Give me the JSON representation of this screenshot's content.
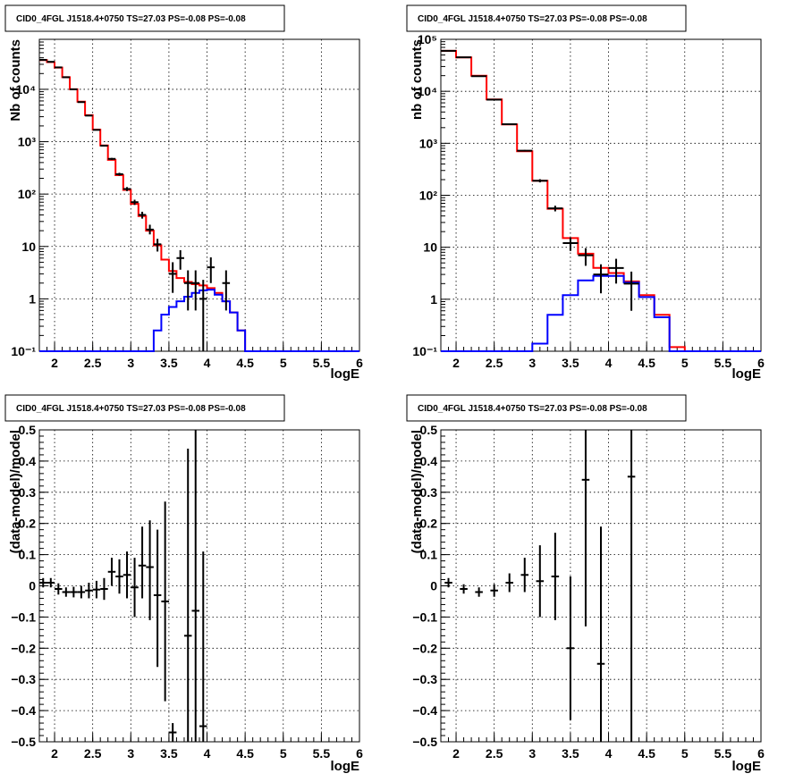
{
  "chart_data": [
    {
      "type": "line",
      "id": "counts_left",
      "title": "CID0_4FGL J1518.4+0750 TS=27.03 PS=-0.08 PS=-0.08",
      "xlabel": "logE",
      "ylabel": "Nb of counts",
      "xlim": [
        1.8,
        6.0
      ],
      "ylim": [
        0.1,
        90000
      ],
      "yscale": "log",
      "xticks": [
        "2",
        "2.5",
        "3",
        "3.5",
        "4",
        "4.5",
        "5",
        "5.5",
        "6"
      ],
      "yticks": [
        "10⁻¹",
        "1",
        "10",
        "10²",
        "10³",
        "10⁴"
      ],
      "grid": true,
      "bin_edges": [
        1.8,
        1.9,
        2.0,
        2.1,
        2.2,
        2.3,
        2.4,
        2.5,
        2.6,
        2.7,
        2.8,
        2.9,
        3.0,
        3.1,
        3.2,
        3.3,
        3.4,
        3.5,
        3.6,
        3.7,
        3.8,
        3.9,
        4.0,
        4.1,
        4.2,
        4.3,
        4.4,
        4.5,
        4.6,
        4.7,
        4.8,
        4.9,
        5.0,
        5.1,
        5.2,
        5.3,
        5.4,
        5.5,
        5.6,
        5.7,
        5.8,
        5.9,
        6.0
      ],
      "series": [
        {
          "color": "#ff0000",
          "values": [
            36000,
            33000,
            26000,
            17000,
            10000,
            5800,
            3200,
            1700,
            850,
            450,
            230,
            120,
            65,
            38,
            20,
            10.5,
            5.6,
            3.4,
            2.5,
            2.1,
            1.9,
            1.8,
            1.6,
            1.3,
            0.9,
            0.55,
            0.25,
            0.1,
            0.1,
            0.1,
            0.1,
            0.1,
            0.1,
            0.1,
            0.1,
            0.1,
            0.1,
            0.1,
            0.1,
            0.1,
            0.1,
            0.1
          ]
        },
        {
          "color": "#0000ff",
          "values": [
            0.1,
            0.1,
            0.1,
            0.1,
            0.1,
            0.1,
            0.1,
            0.1,
            0.1,
            0.1,
            0.1,
            0.1,
            0.1,
            0.1,
            0.1,
            0.25,
            0.5,
            0.7,
            0.9,
            1.1,
            1.3,
            1.45,
            1.5,
            1.2,
            0.9,
            0.55,
            0.25,
            0.1,
            0.1,
            0.1,
            0.1,
            0.1,
            0.1,
            0.1,
            0.1,
            0.1,
            0.1,
            0.1,
            0.1,
            0.1,
            0.1,
            0.1
          ]
        }
      ],
      "points": [
        {
          "x": 1.85,
          "y": 36500,
          "ylo": 36000,
          "yhi": 37000
        },
        {
          "x": 1.95,
          "y": 33500,
          "ylo": 33000,
          "yhi": 34000
        },
        {
          "x": 2.05,
          "y": 26200,
          "ylo": 25800,
          "yhi": 26600
        },
        {
          "x": 2.15,
          "y": 17000,
          "ylo": 16800,
          "yhi": 17200
        },
        {
          "x": 2.25,
          "y": 10000,
          "ylo": 9900,
          "yhi": 10100
        },
        {
          "x": 2.35,
          "y": 5700,
          "ylo": 5620,
          "yhi": 5780
        },
        {
          "x": 2.45,
          "y": 3150,
          "ylo": 3100,
          "yhi": 3200
        },
        {
          "x": 2.55,
          "y": 1680,
          "ylo": 1640,
          "yhi": 1720
        },
        {
          "x": 2.65,
          "y": 840,
          "ylo": 810,
          "yhi": 870
        },
        {
          "x": 2.75,
          "y": 470,
          "ylo": 450,
          "yhi": 490
        },
        {
          "x": 2.85,
          "y": 240,
          "ylo": 225,
          "yhi": 255
        },
        {
          "x": 2.95,
          "y": 125,
          "ylo": 114,
          "yhi": 136
        },
        {
          "x": 3.05,
          "y": 70,
          "ylo": 62,
          "yhi": 78
        },
        {
          "x": 3.15,
          "y": 40,
          "ylo": 34,
          "yhi": 46
        },
        {
          "x": 3.25,
          "y": 21,
          "ylo": 17,
          "yhi": 26
        },
        {
          "x": 3.35,
          "y": 11,
          "ylo": 8,
          "yhi": 14
        },
        {
          "x": 3.55,
          "y": 3,
          "ylo": 1.3,
          "yhi": 5
        },
        {
          "x": 3.65,
          "y": 6,
          "ylo": 3.6,
          "yhi": 8.5
        },
        {
          "x": 3.75,
          "y": 2,
          "ylo": 0.6,
          "yhi": 3.5
        },
        {
          "x": 3.85,
          "y": 2,
          "ylo": 0.6,
          "yhi": 3.5
        },
        {
          "x": 3.95,
          "y": 1,
          "ylo": 0.1,
          "yhi": 2.3
        },
        {
          "x": 4.05,
          "y": 4,
          "ylo": 2,
          "yhi": 6.2
        },
        {
          "x": 4.25,
          "y": 2,
          "ylo": 0.6,
          "yhi": 3.5
        }
      ]
    },
    {
      "type": "line",
      "id": "counts_right",
      "title": "CID0_4FGL J1518.4+0750 TS=27.03 PS=-0.08 PS=-0.08",
      "xlabel": "logE",
      "ylabel": "nb of counts",
      "xlim": [
        1.8,
        6.0
      ],
      "ylim": [
        0.1,
        100000
      ],
      "yscale": "log",
      "xticks": [
        "2",
        "2.5",
        "3",
        "3.5",
        "4",
        "4.5",
        "5",
        "5.5",
        "6"
      ],
      "yticks": [
        "10⁻¹",
        "1",
        "10",
        "10²",
        "10³",
        "10⁴",
        "10⁵"
      ],
      "grid": true,
      "bin_edges": [
        1.8,
        2.0,
        2.2,
        2.4,
        2.6,
        2.8,
        3.0,
        3.2,
        3.4,
        3.6,
        3.8,
        4.0,
        4.2,
        4.4,
        4.6,
        4.8,
        5.0,
        5.2,
        5.4,
        5.6,
        5.8,
        6.0
      ],
      "series": [
        {
          "color": "#ff0000",
          "values": [
            60000,
            45000,
            20000,
            7000,
            2300,
            700,
            190,
            55,
            15,
            7.5,
            4,
            3.2,
            2.2,
            1.2,
            0.5,
            0.12,
            0.1,
            0.1,
            0.1,
            0.1,
            0.1
          ]
        },
        {
          "color": "#0000ff",
          "values": [
            0.1,
            0.1,
            0.1,
            0.1,
            0.1,
            0.1,
            0.14,
            0.5,
            1.2,
            2.3,
            2.8,
            2.8,
            2.1,
            1.1,
            0.45,
            0.1,
            0.1,
            0.1,
            0.1,
            0.1,
            0.1
          ]
        }
      ],
      "points": [
        {
          "x": 1.9,
          "y": 60000,
          "ylo": 59500,
          "yhi": 60500
        },
        {
          "x": 2.1,
          "y": 45000,
          "ylo": 44500,
          "yhi": 45500
        },
        {
          "x": 2.3,
          "y": 19500,
          "ylo": 19200,
          "yhi": 19800
        },
        {
          "x": 2.5,
          "y": 6900,
          "ylo": 6800,
          "yhi": 7000
        },
        {
          "x": 2.7,
          "y": 2330,
          "ylo": 2280,
          "yhi": 2380
        },
        {
          "x": 2.9,
          "y": 720,
          "ylo": 695,
          "yhi": 745
        },
        {
          "x": 3.1,
          "y": 190,
          "ylo": 177,
          "yhi": 204
        },
        {
          "x": 3.3,
          "y": 56,
          "ylo": 49,
          "yhi": 63
        },
        {
          "x": 3.5,
          "y": 12,
          "ylo": 8.5,
          "yhi": 15.5
        },
        {
          "x": 3.7,
          "y": 7,
          "ylo": 4.4,
          "yhi": 9.6
        },
        {
          "x": 3.9,
          "y": 3,
          "ylo": 1.3,
          "yhi": 4.7
        },
        {
          "x": 4.1,
          "y": 4,
          "ylo": 2,
          "yhi": 6
        },
        {
          "x": 4.3,
          "y": 2,
          "ylo": 0.6,
          "yhi": 3.4
        }
      ]
    },
    {
      "type": "scatter",
      "id": "resid_left",
      "title": "CID0_4FGL J1518.4+0750 TS=27.03 PS=-0.08 PS=-0.08",
      "xlabel": "logE",
      "ylabel": "(data-model)/model",
      "xlim": [
        1.8,
        6.0
      ],
      "ylim": [
        -0.5,
        0.5
      ],
      "xticks": [
        "2",
        "2.5",
        "3",
        "3.5",
        "4",
        "4.5",
        "5",
        "5.5",
        "6"
      ],
      "yticks": [
        "−0.5",
        "−0.4",
        "−0.3",
        "−0.2",
        "−0.1",
        "0",
        "0.1",
        "0.2",
        "0.3",
        "0.4",
        "0.5"
      ],
      "grid": true,
      "points": [
        {
          "x": 1.85,
          "y": 0.01,
          "ylo": -0.005,
          "yhi": 0.025
        },
        {
          "x": 1.95,
          "y": 0.01,
          "ylo": -0.005,
          "yhi": 0.025
        },
        {
          "x": 2.05,
          "y": -0.01,
          "ylo": -0.028,
          "yhi": 0.008
        },
        {
          "x": 2.15,
          "y": -0.02,
          "ylo": -0.035,
          "yhi": -0.005
        },
        {
          "x": 2.25,
          "y": -0.02,
          "ylo": -0.037,
          "yhi": -0.003
        },
        {
          "x": 2.35,
          "y": -0.02,
          "ylo": -0.04,
          "yhi": 0.0
        },
        {
          "x": 2.45,
          "y": -0.015,
          "ylo": -0.04,
          "yhi": 0.01
        },
        {
          "x": 2.55,
          "y": -0.012,
          "ylo": -0.04,
          "yhi": 0.016
        },
        {
          "x": 2.65,
          "y": -0.01,
          "ylo": -0.045,
          "yhi": 0.025
        },
        {
          "x": 2.75,
          "y": 0.045,
          "ylo": 0.0,
          "yhi": 0.09
        },
        {
          "x": 2.85,
          "y": 0.03,
          "ylo": -0.025,
          "yhi": 0.085
        },
        {
          "x": 2.95,
          "y": 0.035,
          "ylo": -0.04,
          "yhi": 0.11
        },
        {
          "x": 3.05,
          "y": -0.005,
          "ylo": -0.1,
          "yhi": 0.09
        },
        {
          "x": 3.15,
          "y": 0.065,
          "ylo": -0.04,
          "yhi": 0.19
        },
        {
          "x": 3.25,
          "y": 0.06,
          "ylo": -0.11,
          "yhi": 0.21
        },
        {
          "x": 3.35,
          "y": -0.03,
          "ylo": -0.26,
          "yhi": 0.18
        },
        {
          "x": 3.45,
          "y": -0.05,
          "ylo": -0.37,
          "yhi": 0.27
        },
        {
          "x": 3.55,
          "y": -0.47,
          "ylo": -0.5,
          "yhi": -0.44
        },
        {
          "x": 3.75,
          "y": -0.16,
          "ylo": -0.5,
          "yhi": 0.44
        },
        {
          "x": 3.85,
          "y": -0.08,
          "ylo": -0.5,
          "yhi": 0.5
        },
        {
          "x": 3.95,
          "y": -0.45,
          "ylo": -0.5,
          "yhi": 0.11
        }
      ]
    },
    {
      "type": "scatter",
      "id": "resid_right",
      "title": "CID0_4FGL J1518.4+0750 TS=27.03 PS=-0.08 PS=-0.08",
      "xlabel": "logE",
      "ylabel": "(data-model)/model",
      "xlim": [
        1.8,
        6.0
      ],
      "ylim": [
        -0.5,
        0.5
      ],
      "xticks": [
        "2",
        "2.5",
        "3",
        "3.5",
        "4",
        "4.5",
        "5",
        "5.5",
        "6"
      ],
      "yticks": [
        "−0.5",
        "−0.4",
        "−0.3",
        "−0.2",
        "−0.1",
        "0",
        "0.1",
        "0.2",
        "0.3",
        "0.4",
        "0.5"
      ],
      "grid": true,
      "points": [
        {
          "x": 1.9,
          "y": 0.01,
          "ylo": -0.005,
          "yhi": 0.025
        },
        {
          "x": 2.1,
          "y": -0.01,
          "ylo": -0.025,
          "yhi": 0.005
        },
        {
          "x": 2.3,
          "y": -0.02,
          "ylo": -0.035,
          "yhi": -0.005
        },
        {
          "x": 2.5,
          "y": -0.015,
          "ylo": -0.035,
          "yhi": 0.005
        },
        {
          "x": 2.7,
          "y": 0.01,
          "ylo": -0.02,
          "yhi": 0.04
        },
        {
          "x": 2.9,
          "y": 0.035,
          "ylo": -0.02,
          "yhi": 0.09
        },
        {
          "x": 3.1,
          "y": 0.015,
          "ylo": -0.1,
          "yhi": 0.13
        },
        {
          "x": 3.3,
          "y": 0.03,
          "ylo": -0.11,
          "yhi": 0.17
        },
        {
          "x": 3.5,
          "y": -0.2,
          "ylo": -0.43,
          "yhi": 0.03
        },
        {
          "x": 3.7,
          "y": 0.34,
          "ylo": -0.13,
          "yhi": 0.5
        },
        {
          "x": 3.9,
          "y": -0.25,
          "ylo": -0.5,
          "yhi": 0.19
        },
        {
          "x": 4.3,
          "y": 0.35,
          "ylo": -0.5,
          "yhi": 0.5
        }
      ]
    }
  ]
}
